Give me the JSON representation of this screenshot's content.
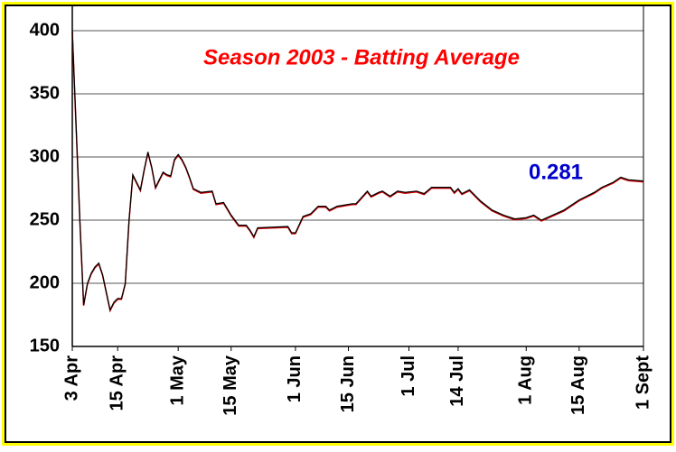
{
  "chart_data": {
    "type": "line",
    "title": "Season 2003 - Batting Average",
    "annotation": "0.281",
    "x": [
      "2003-04-03",
      "2003-04-05",
      "2003-04-06",
      "2003-04-07",
      "2003-04-08",
      "2003-04-09",
      "2003-04-10",
      "2003-04-11",
      "2003-04-13",
      "2003-04-14",
      "2003-04-15",
      "2003-04-16",
      "2003-04-17",
      "2003-04-18",
      "2003-04-19",
      "2003-04-20",
      "2003-04-21",
      "2003-04-22",
      "2003-04-23",
      "2003-04-24",
      "2003-04-25",
      "2003-04-26",
      "2003-04-27",
      "2003-04-28",
      "2003-04-29",
      "2003-04-30",
      "2003-05-01",
      "2003-05-02",
      "2003-05-03",
      "2003-05-04",
      "2003-05-05",
      "2003-05-07",
      "2003-05-10",
      "2003-05-11",
      "2003-05-13",
      "2003-05-15",
      "2003-05-17",
      "2003-05-19",
      "2003-05-20",
      "2003-05-21",
      "2003-05-22",
      "2003-05-30",
      "2003-05-31",
      "2003-06-01",
      "2003-06-03",
      "2003-06-05",
      "2003-06-07",
      "2003-06-09",
      "2003-06-10",
      "2003-06-12",
      "2003-06-16",
      "2003-06-17",
      "2003-06-20",
      "2003-06-21",
      "2003-06-23",
      "2003-06-24",
      "2003-06-26",
      "2003-06-28",
      "2003-06-30",
      "2003-07-03",
      "2003-07-05",
      "2003-07-07",
      "2003-07-12",
      "2003-07-13",
      "2003-07-14",
      "2003-07-15",
      "2003-07-17",
      "2003-07-20",
      "2003-07-23",
      "2003-07-26",
      "2003-07-29",
      "2003-08-01",
      "2003-08-03",
      "2003-08-05",
      "2003-08-08",
      "2003-08-11",
      "2003-08-15",
      "2003-08-19",
      "2003-08-21",
      "2003-08-24",
      "2003-08-26",
      "2003-08-28",
      "2003-09-01"
    ],
    "series": [
      {
        "color": "#000000",
        "values": [
          400,
          250,
          183,
          200,
          208,
          213,
          216,
          207,
          179,
          185,
          188,
          188,
          200,
          250,
          286,
          280,
          274,
          290,
          304,
          292,
          276,
          282,
          288,
          286,
          285,
          298,
          302,
          298,
          292,
          284,
          275,
          272,
          273,
          263,
          264,
          254,
          246,
          246,
          242,
          237,
          244,
          245,
          240,
          240,
          253,
          255,
          261,
          261,
          258,
          261,
          263,
          263,
          273,
          269,
          272,
          273,
          269,
          273,
          272,
          273,
          271,
          276,
          276,
          272,
          275,
          271,
          274,
          265,
          258,
          254,
          251,
          252,
          254,
          250,
          254,
          258,
          266,
          272,
          276,
          280,
          284,
          282,
          281
        ]
      }
    ],
    "xlim": [
      "2003-04-03",
      "2003-09-01"
    ],
    "xticks": [
      {
        "value": "2003-04-03",
        "label": "3 Apr"
      },
      {
        "value": "2003-04-15",
        "label": "15 Apr"
      },
      {
        "value": "2003-05-01",
        "label": "1 May"
      },
      {
        "value": "2003-05-15",
        "label": "15 May"
      },
      {
        "value": "2003-06-01",
        "label": "1 Jun"
      },
      {
        "value": "2003-06-15",
        "label": "15 Jun"
      },
      {
        "value": "2003-07-01",
        "label": "1 Jul"
      },
      {
        "value": "2003-07-14",
        "label": "14 Jul"
      },
      {
        "value": "2003-08-01",
        "label": "1 Aug"
      },
      {
        "value": "2003-08-15",
        "label": "15 Aug"
      },
      {
        "value": "2003-09-01",
        "label": "1 Sept"
      }
    ],
    "ylim": [
      150,
      400
    ],
    "yticks": [
      150,
      200,
      250,
      300,
      350,
      400
    ],
    "grid": true
  }
}
